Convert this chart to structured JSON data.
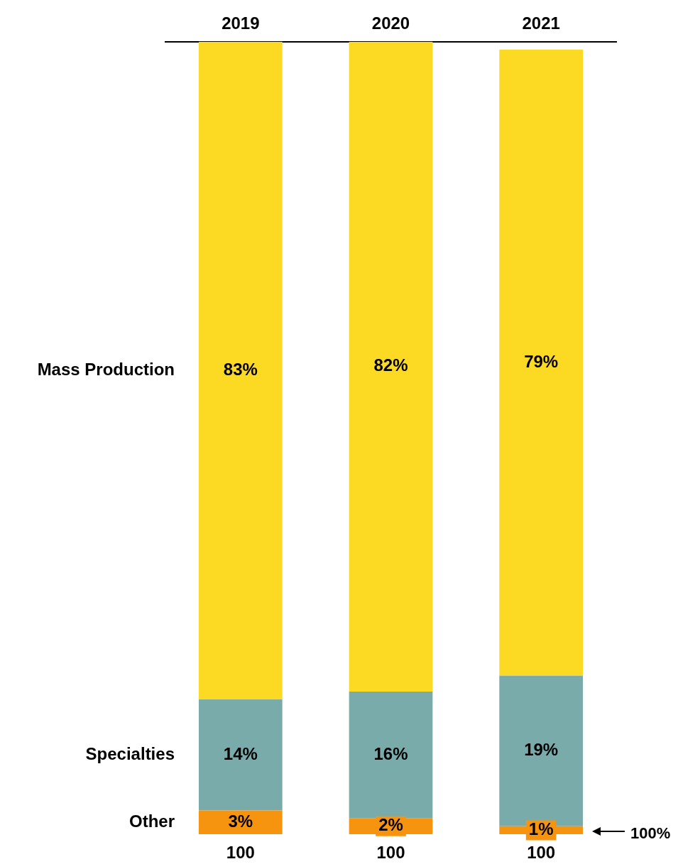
{
  "chart_data": {
    "type": "bar",
    "stacked": true,
    "categories": [
      "2019",
      "2020",
      "2021"
    ],
    "series": [
      {
        "name": "Other",
        "color": "#f7940f",
        "values": [
          3,
          2,
          1
        ],
        "value_labels": [
          "3%",
          "2%",
          "1%"
        ]
      },
      {
        "name": "Specialties",
        "color": "#7aabab",
        "values": [
          14,
          16,
          19
        ],
        "value_labels": [
          "14%",
          "16%",
          "19%"
        ]
      },
      {
        "name": "Mass Production",
        "color": "#fcd923",
        "values": [
          83,
          82,
          79
        ],
        "value_labels": [
          "83%",
          "82%",
          "79%"
        ]
      }
    ],
    "totals": [
      "100",
      "100",
      "100"
    ],
    "annotations": [
      "100%"
    ],
    "legend": false,
    "grid": false
  }
}
